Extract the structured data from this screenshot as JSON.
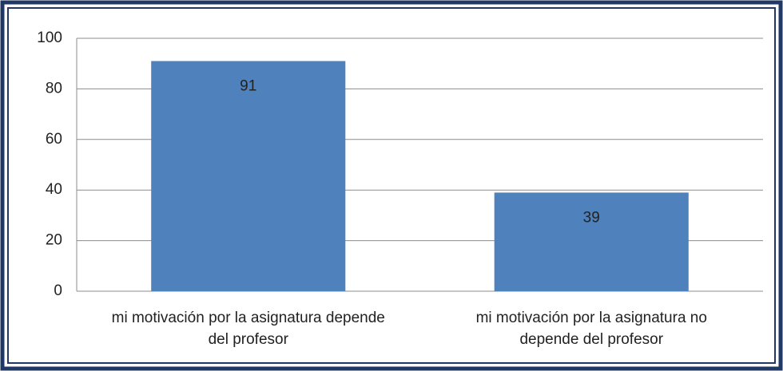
{
  "chart_data": {
    "type": "bar",
    "categories": [
      "mi motivación por la asignatura depende del profesor",
      "mi motivación por la asignatura no depende del profesor"
    ],
    "values": [
      91,
      39
    ],
    "color": "#4f81bd",
    "ylim": [
      0,
      100
    ],
    "yticks": [
      0,
      20,
      40,
      60,
      80,
      100
    ],
    "grid": true
  }
}
